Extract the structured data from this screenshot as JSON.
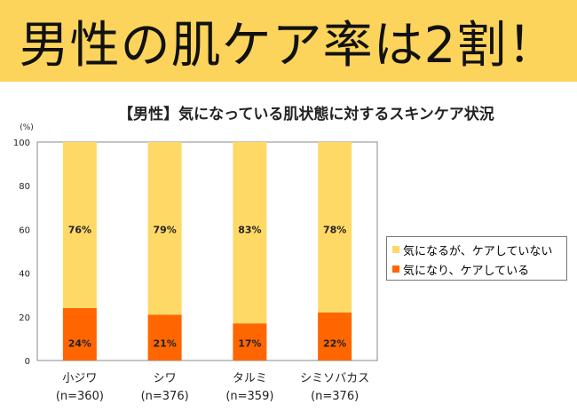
{
  "banner": {
    "text": "男性の肌ケア率は2割！"
  },
  "chart_data": {
    "type": "bar",
    "stacked": true,
    "title": "【男性】気になっている肌状態に対するスキンケア状況",
    "ylabel": "(%)",
    "ylim": [
      0,
      100
    ],
    "yticks": [
      0,
      20,
      40,
      60,
      80,
      100
    ],
    "categories": [
      "小ジワ",
      "シワ",
      "タルミ",
      "シミソバカス"
    ],
    "category_n": [
      "(n=360)",
      "(n=376)",
      "(n=359)",
      "(n=376)"
    ],
    "series": [
      {
        "name": "気になり、ケアしている",
        "values": [
          24,
          21,
          17,
          22
        ],
        "labels": [
          "24%",
          "21%",
          "17%",
          "22%"
        ],
        "color": "#ff6600"
      },
      {
        "name": "気になるが、ケアしていない",
        "values": [
          76,
          79,
          83,
          78
        ],
        "labels": [
          "76%",
          "79%",
          "83%",
          "78%"
        ],
        "color": "#ffd966"
      }
    ],
    "legend": "right"
  }
}
